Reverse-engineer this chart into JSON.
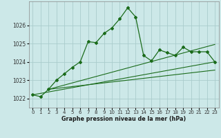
{
  "title": "Graphe pression niveau de la mer (hPa)",
  "bg_color": "#cce8e8",
  "grid_color": "#aacccc",
  "line_color": "#1a6b1a",
  "marker_color": "#1a6b1a",
  "xlim": [
    -0.5,
    23.5
  ],
  "ylim": [
    1021.5,
    1027.3
  ],
  "yticks": [
    1022,
    1023,
    1024,
    1025,
    1026
  ],
  "ytick_labels": [
    "1022",
    "1023",
    "1024",
    "1025",
    "1026"
  ],
  "xticks": [
    0,
    1,
    2,
    3,
    4,
    5,
    6,
    7,
    8,
    9,
    10,
    11,
    12,
    13,
    14,
    15,
    16,
    17,
    18,
    19,
    20,
    21,
    22,
    23
  ],
  "series1_x": [
    0,
    1,
    2,
    3,
    4,
    5,
    6,
    7,
    8,
    9,
    10,
    11,
    12,
    13,
    14,
    15,
    16,
    17,
    18,
    19,
    20,
    21,
    22,
    23
  ],
  "series1_y": [
    1022.2,
    1022.1,
    1022.5,
    1023.0,
    1023.35,
    1023.7,
    1024.0,
    1025.1,
    1025.05,
    1025.55,
    1025.85,
    1026.35,
    1026.95,
    1026.45,
    1024.35,
    1024.05,
    1024.65,
    1024.5,
    1024.35,
    1024.8,
    1024.55,
    1024.55,
    1024.55,
    1024.0
  ],
  "series2_x": [
    0,
    23
  ],
  "series2_y": [
    1022.2,
    1024.0
  ],
  "series3_x": [
    2,
    23
  ],
  "series3_y": [
    1022.5,
    1023.55
  ],
  "series4_x": [
    2,
    23
  ],
  "series4_y": [
    1022.5,
    1024.95
  ]
}
